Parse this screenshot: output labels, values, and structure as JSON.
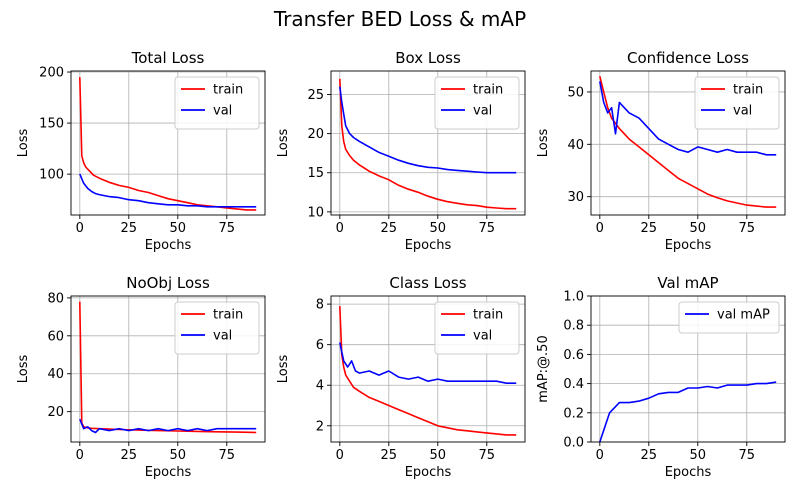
{
  "figure": {
    "title": "Transfer BED Loss & mAP"
  },
  "colors": {
    "train": "#ff0000",
    "val": "#0000ff",
    "grid": "#b0b0b0"
  },
  "chart_data": [
    {
      "type": "line",
      "title": "Total Loss",
      "xlabel": "Epochs",
      "ylabel": "Loss",
      "xlim": [
        -4.5,
        94.5
      ],
      "ylim": [
        60,
        201
      ],
      "xticks": [
        0,
        25,
        50,
        75
      ],
      "yticks": [
        100,
        150,
        200
      ],
      "grid": true,
      "legend": "top-right",
      "series": [
        {
          "name": "train",
          "color": "#ff0000",
          "x": [
            0,
            1,
            2,
            3,
            5,
            7,
            10,
            15,
            20,
            25,
            30,
            35,
            40,
            45,
            50,
            55,
            60,
            65,
            70,
            75,
            80,
            85,
            90
          ],
          "y": [
            195,
            118,
            111,
            107,
            103,
            99,
            96,
            92,
            89,
            87,
            84,
            82,
            79,
            76,
            74,
            72,
            70,
            69,
            68,
            67,
            66,
            65,
            65
          ]
        },
        {
          "name": "val",
          "color": "#0000ff",
          "x": [
            0,
            2,
            4,
            6,
            8,
            10,
            15,
            20,
            25,
            30,
            35,
            40,
            45,
            50,
            55,
            60,
            65,
            70,
            75,
            80,
            85,
            90
          ],
          "y": [
            100,
            91,
            86,
            83,
            81,
            80,
            78,
            77,
            75,
            74,
            72,
            71,
            70,
            70,
            69,
            69,
            68,
            68,
            68,
            68,
            68,
            68
          ]
        }
      ]
    },
    {
      "type": "line",
      "title": "Box Loss",
      "xlabel": "Epochs",
      "ylabel": "Loss",
      "xlim": [
        -4.5,
        94.5
      ],
      "ylim": [
        9.6,
        28
      ],
      "xticks": [
        0,
        25,
        50,
        75
      ],
      "yticks": [
        10,
        15,
        20,
        25
      ],
      "grid": true,
      "legend": "top-right",
      "series": [
        {
          "name": "train",
          "color": "#ff0000",
          "x": [
            0,
            1,
            2,
            3,
            5,
            7,
            10,
            15,
            20,
            25,
            30,
            35,
            40,
            45,
            50,
            55,
            60,
            65,
            70,
            75,
            80,
            85,
            90
          ],
          "y": [
            27,
            21,
            19,
            18,
            17.2,
            16.6,
            16,
            15.2,
            14.6,
            14.1,
            13.4,
            12.9,
            12.5,
            12,
            11.6,
            11.3,
            11.1,
            10.9,
            10.8,
            10.6,
            10.5,
            10.4,
            10.4
          ]
        },
        {
          "name": "val",
          "color": "#0000ff",
          "x": [
            0,
            1,
            2,
            3,
            5,
            7,
            10,
            15,
            20,
            25,
            30,
            35,
            40,
            45,
            50,
            55,
            60,
            65,
            70,
            75,
            80,
            85,
            90
          ],
          "y": [
            26,
            24,
            22.5,
            21,
            20,
            19.5,
            19,
            18.3,
            17.6,
            17.1,
            16.6,
            16.2,
            15.9,
            15.7,
            15.6,
            15.4,
            15.3,
            15.2,
            15.1,
            15,
            15,
            15,
            15
          ]
        }
      ]
    },
    {
      "type": "line",
      "title": "Confidence Loss",
      "xlabel": "Epochs",
      "ylabel": "Loss",
      "xlim": [
        -4.5,
        94.5
      ],
      "ylim": [
        26.5,
        54
      ],
      "xticks": [
        0,
        25,
        50,
        75
      ],
      "yticks": [
        30,
        40,
        50
      ],
      "grid": true,
      "legend": "top-right",
      "series": [
        {
          "name": "train",
          "color": "#ff0000",
          "x": [
            0,
            2,
            4,
            6,
            8,
            10,
            15,
            20,
            25,
            30,
            35,
            40,
            45,
            50,
            55,
            60,
            65,
            70,
            75,
            80,
            85,
            90
          ],
          "y": [
            53,
            50,
            47,
            45,
            44,
            43,
            41,
            39.5,
            38,
            36.5,
            35,
            33.5,
            32.5,
            31.5,
            30.5,
            29.8,
            29.2,
            28.8,
            28.4,
            28.2,
            28,
            28
          ]
        },
        {
          "name": "val",
          "color": "#0000ff",
          "x": [
            0,
            2,
            4,
            6,
            8,
            10,
            15,
            20,
            25,
            30,
            35,
            40,
            45,
            50,
            55,
            60,
            65,
            70,
            75,
            80,
            85,
            90
          ],
          "y": [
            52,
            48,
            46,
            47,
            42,
            48,
            46,
            45,
            43,
            41,
            40,
            39,
            38.5,
            39.5,
            39,
            38.5,
            39,
            38.5,
            38.5,
            38.5,
            38,
            38
          ]
        }
      ]
    },
    {
      "type": "line",
      "title": "NoObj Loss",
      "xlabel": "Epochs",
      "ylabel": "Loss",
      "xlim": [
        -4.5,
        94.5
      ],
      "ylim": [
        4,
        81
      ],
      "xticks": [
        0,
        25,
        50,
        75
      ],
      "yticks": [
        20,
        40,
        60,
        80
      ],
      "grid": true,
      "legend": "top-right",
      "series": [
        {
          "name": "train",
          "color": "#ff0000",
          "x": [
            0,
            1,
            2,
            4,
            6,
            10,
            15,
            20,
            30,
            40,
            50,
            60,
            70,
            80,
            90
          ],
          "y": [
            78,
            14,
            12,
            11.5,
            11.2,
            11,
            10.8,
            10.6,
            10.3,
            10,
            9.8,
            9.6,
            9.4,
            9.2,
            9
          ]
        },
        {
          "name": "val",
          "color": "#0000ff",
          "x": [
            0,
            2,
            4,
            6,
            8,
            10,
            15,
            20,
            25,
            30,
            35,
            40,
            45,
            50,
            55,
            60,
            65,
            70,
            75,
            80,
            85,
            90
          ],
          "y": [
            16,
            11,
            12,
            10,
            9,
            11,
            10,
            11,
            10,
            11,
            10,
            11,
            10,
            11,
            10,
            11,
            10,
            11,
            11,
            11,
            11,
            11
          ]
        }
      ]
    },
    {
      "type": "line",
      "title": "Class Loss",
      "xlabel": "Epochs",
      "ylabel": "Loss",
      "xlim": [
        -4.5,
        94.5
      ],
      "ylim": [
        1.2,
        8.4
      ],
      "xticks": [
        0,
        25,
        50,
        75
      ],
      "yticks": [
        2,
        4,
        6,
        8
      ],
      "grid": true,
      "legend": "top-right",
      "series": [
        {
          "name": "train",
          "color": "#ff0000",
          "x": [
            0,
            1,
            2,
            3,
            5,
            7,
            10,
            15,
            20,
            25,
            30,
            35,
            40,
            45,
            50,
            55,
            60,
            65,
            70,
            75,
            80,
            85,
            90
          ],
          "y": [
            7.9,
            5.5,
            4.9,
            4.5,
            4.2,
            3.9,
            3.7,
            3.4,
            3.2,
            3,
            2.8,
            2.6,
            2.4,
            2.2,
            2,
            1.9,
            1.8,
            1.75,
            1.7,
            1.65,
            1.6,
            1.55,
            1.55
          ]
        },
        {
          "name": "val",
          "color": "#0000ff",
          "x": [
            0,
            2,
            4,
            6,
            8,
            10,
            15,
            20,
            25,
            30,
            35,
            40,
            45,
            50,
            55,
            60,
            65,
            70,
            75,
            80,
            85,
            90
          ],
          "y": [
            6.1,
            5.2,
            4.9,
            5.2,
            4.7,
            4.6,
            4.7,
            4.5,
            4.7,
            4.4,
            4.3,
            4.4,
            4.2,
            4.3,
            4.2,
            4.2,
            4.2,
            4.2,
            4.2,
            4.2,
            4.1,
            4.1
          ]
        }
      ]
    },
    {
      "type": "line",
      "title": "Val mAP",
      "xlabel": "Epochs",
      "ylabel": "mAP:@.50",
      "xlim": [
        -4.5,
        94.5
      ],
      "ylim": [
        0,
        1
      ],
      "xticks": [
        0,
        25,
        50,
        75
      ],
      "yticks": [
        0.0,
        0.2,
        0.4,
        0.6,
        0.8,
        1.0
      ],
      "ytick_decimals": 1,
      "grid": true,
      "legend": "top-right",
      "series": [
        {
          "name": "val mAP",
          "color": "#0000ff",
          "x": [
            0,
            5,
            10,
            15,
            20,
            25,
            30,
            35,
            40,
            45,
            50,
            55,
            60,
            65,
            70,
            75,
            80,
            85,
            90
          ],
          "y": [
            0,
            0.2,
            0.27,
            0.27,
            0.28,
            0.3,
            0.33,
            0.34,
            0.34,
            0.37,
            0.37,
            0.38,
            0.37,
            0.39,
            0.39,
            0.39,
            0.4,
            0.4,
            0.41
          ]
        }
      ]
    }
  ]
}
